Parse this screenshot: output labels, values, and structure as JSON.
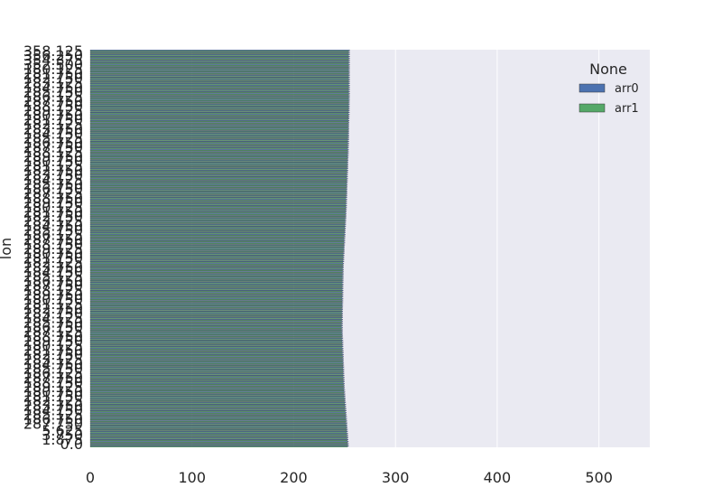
{
  "chart_data": {
    "type": "bar",
    "orientation": "horizontal",
    "title": "",
    "xlabel": "",
    "ylabel": "lon",
    "xlim": [
      0,
      550
    ],
    "xticks": [
      "0",
      "100",
      "200",
      "300",
      "400",
      "500"
    ],
    "grid": true,
    "legend": {
      "title": "None",
      "placement": "upper-right"
    },
    "categories_top": [
      "358.125",
      "356.250",
      "354.375",
      "352.500"
    ],
    "categories_bottom": [
      "5.625",
      "3.750",
      "1.875",
      "0.0"
    ],
    "category_count": 192,
    "series": [
      {
        "name": "arr0",
        "color": "#4c72b0",
        "profile_positions": [
          0.0,
          0.12,
          0.25,
          0.4,
          0.55,
          0.7,
          0.85,
          1.0
        ],
        "profile_values": [
          255,
          255,
          254,
          252,
          249,
          248,
          250,
          254
        ]
      },
      {
        "name": "arr1",
        "color": "#55a868",
        "profile_positions": [
          0.0,
          0.12,
          0.25,
          0.4,
          0.55,
          0.7,
          0.85,
          1.0
        ],
        "profile_values": [
          254,
          254,
          253,
          251,
          248,
          247,
          249,
          253
        ]
      }
    ]
  }
}
